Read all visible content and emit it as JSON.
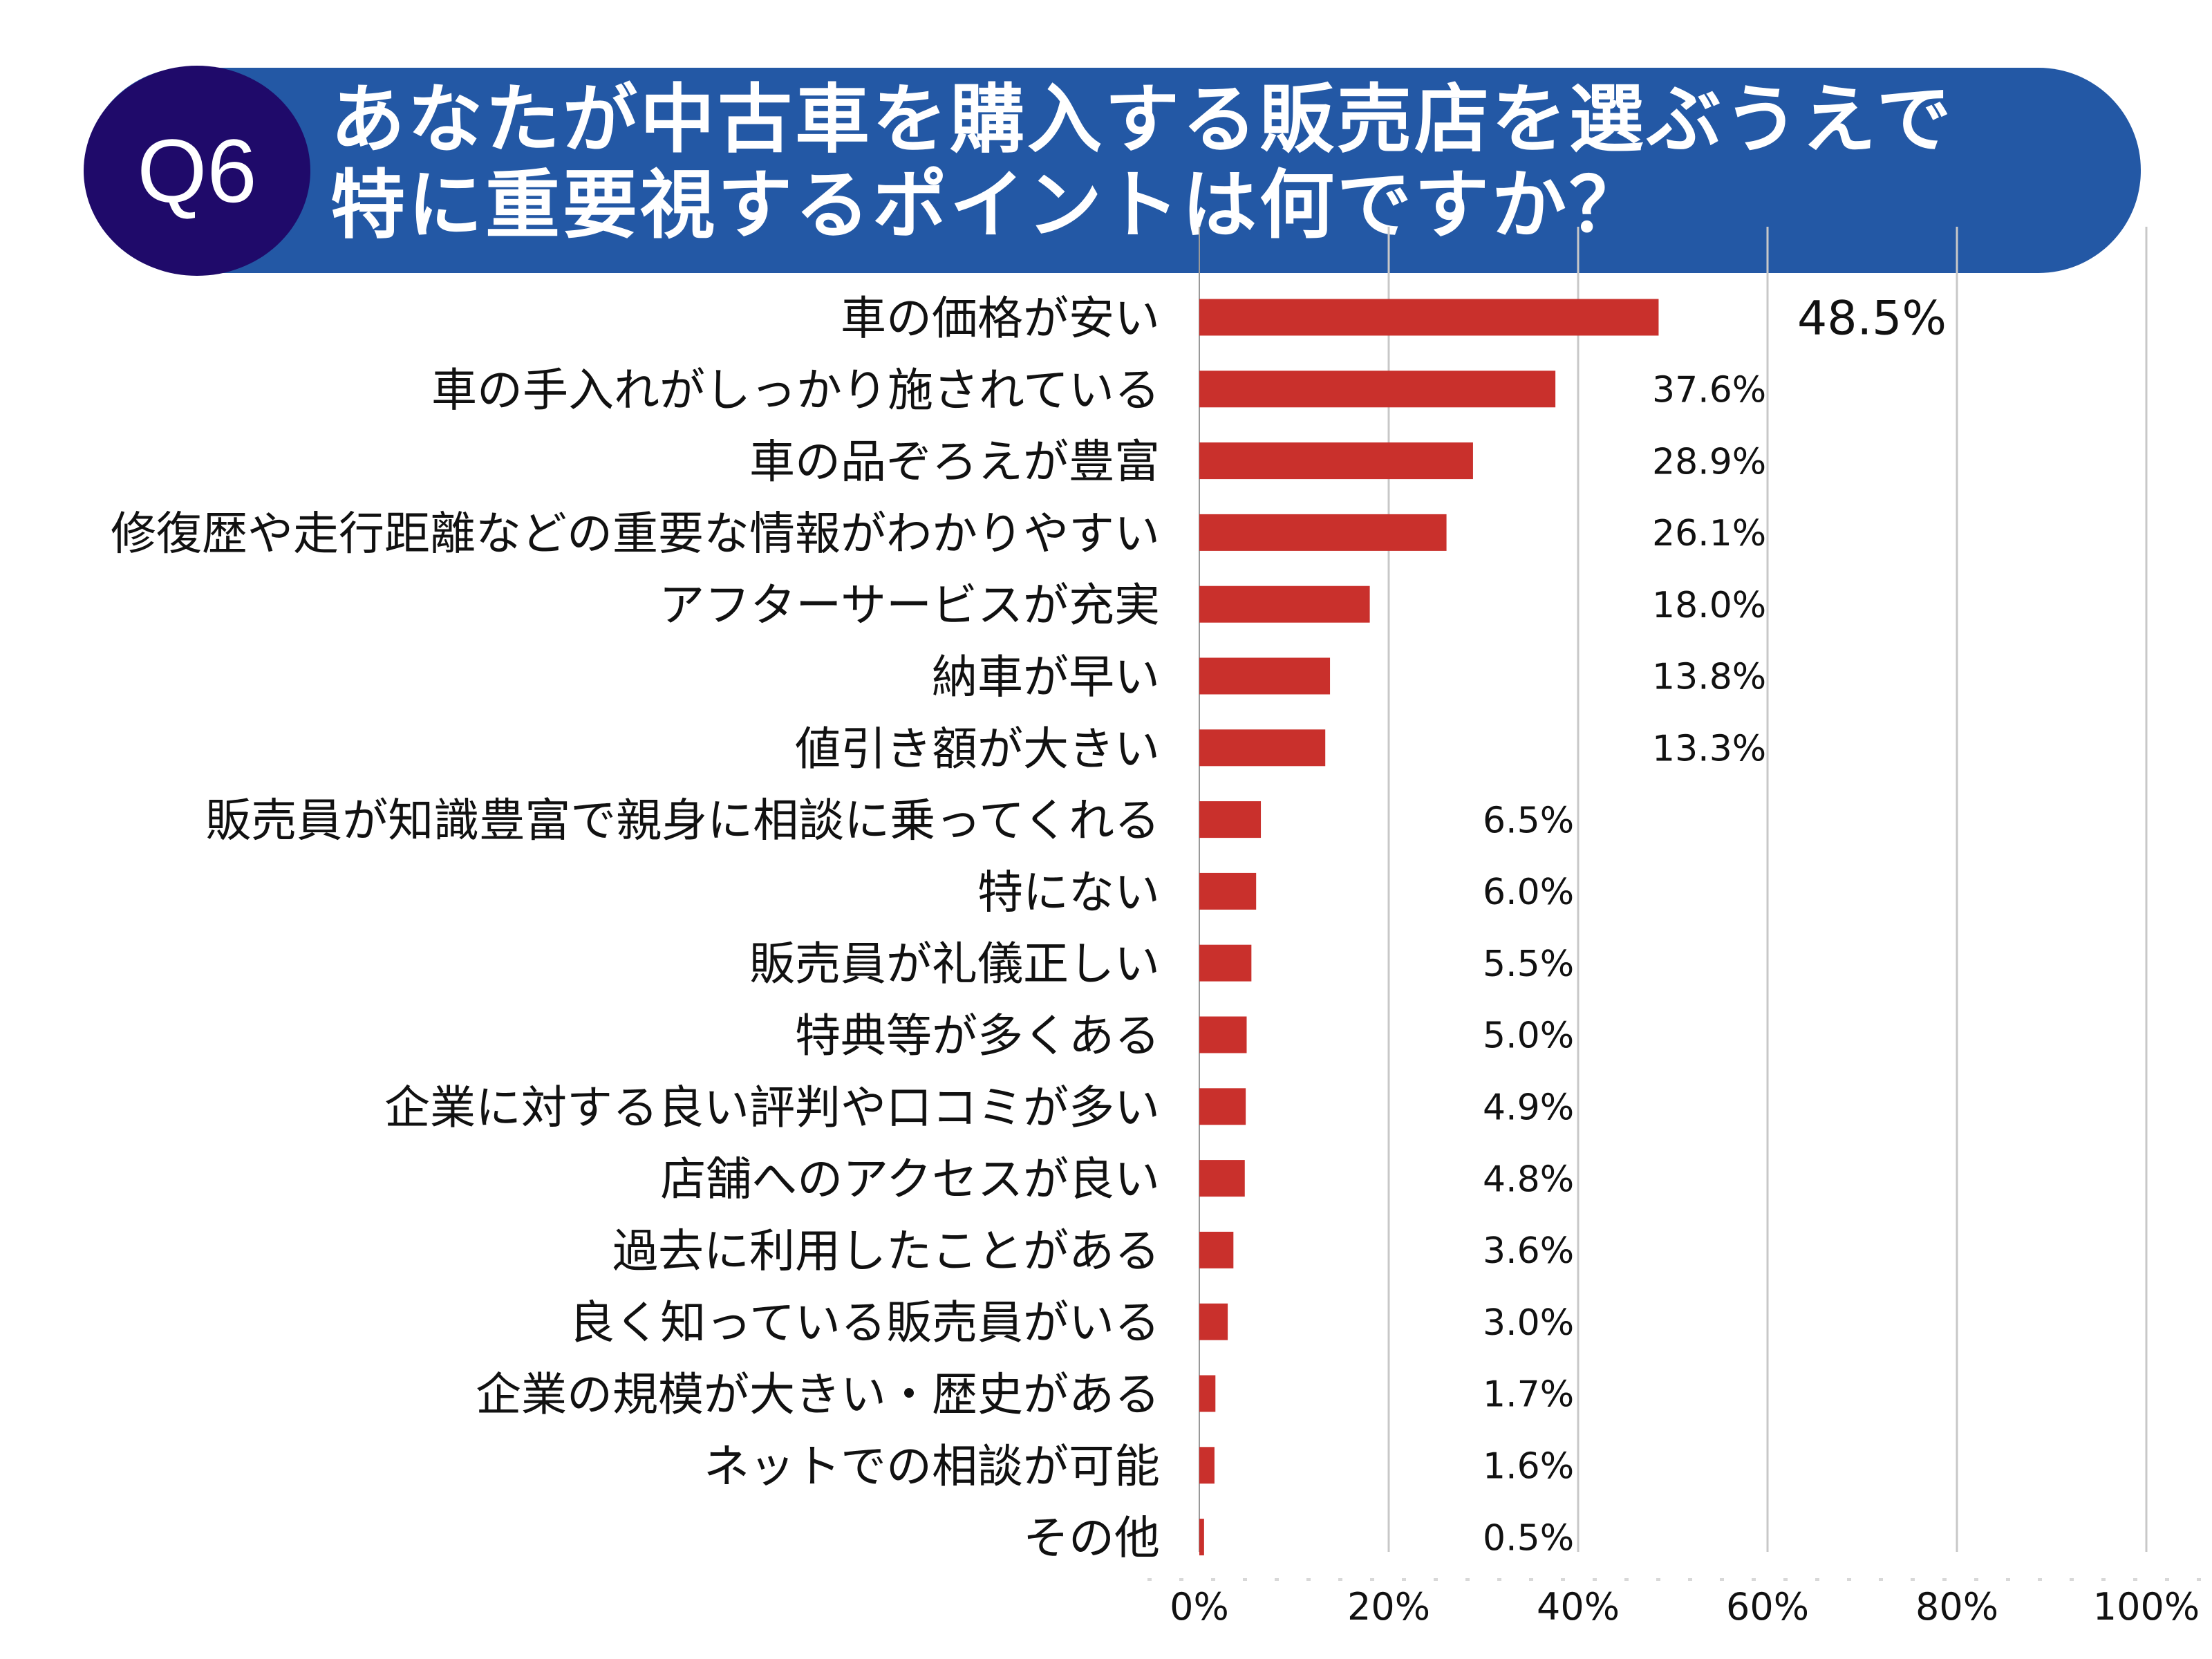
{
  "header": {
    "question_badge": "Q6",
    "title_line1": "あなたが中古車を購入する販売店を選ぶうえで",
    "title_line2": "特に重要視するポイントは何ですか？"
  },
  "colors": {
    "banner": "#2358a5",
    "badge": "#1f0a6a",
    "bar": "#c9302c",
    "grid": "#c8c8c8"
  },
  "chart_data": {
    "type": "bar",
    "orientation": "horizontal",
    "categories": [
      "車の価格が安い",
      "車の手入れがしっかり施されている",
      "車の品ぞろえが豊富",
      "修復歴や走行距離などの重要な情報がわかりやすい",
      "アフターサービスが充実",
      "納車が早い",
      "値引き額が大きい",
      "販売員が知識豊富で親身に相談に乗ってくれる",
      "特にない",
      "販売員が礼儀正しい",
      "特典等が多くある",
      "企業に対する良い評判や口コミが多い",
      "店舗へのアクセスが良い",
      "過去に利用したことがある",
      "良く知っている販売員がいる",
      "企業の規模が大きい・歴史がある",
      "ネットでの相談が可能",
      "その他"
    ],
    "values": [
      48.5,
      37.6,
      28.9,
      26.1,
      18.0,
      13.8,
      13.3,
      6.5,
      6.0,
      5.5,
      5.0,
      4.9,
      4.8,
      3.6,
      3.0,
      1.7,
      1.6,
      0.5
    ],
    "data_labels": [
      "48.5%",
      "37.6%",
      "28.9%",
      "26.1%",
      "18.0%",
      "13.8%",
      "13.3%",
      "6.5%",
      "6.0%",
      "5.5%",
      "5.0%",
      "4.9%",
      "4.8%",
      "3.6%",
      "3.0%",
      "1.7%",
      "1.6%",
      "0.5%"
    ],
    "xlim": [
      0,
      100
    ],
    "x_ticks": [
      "0%",
      "20%",
      "40%",
      "60%",
      "80%",
      "100%"
    ],
    "grid": true
  }
}
